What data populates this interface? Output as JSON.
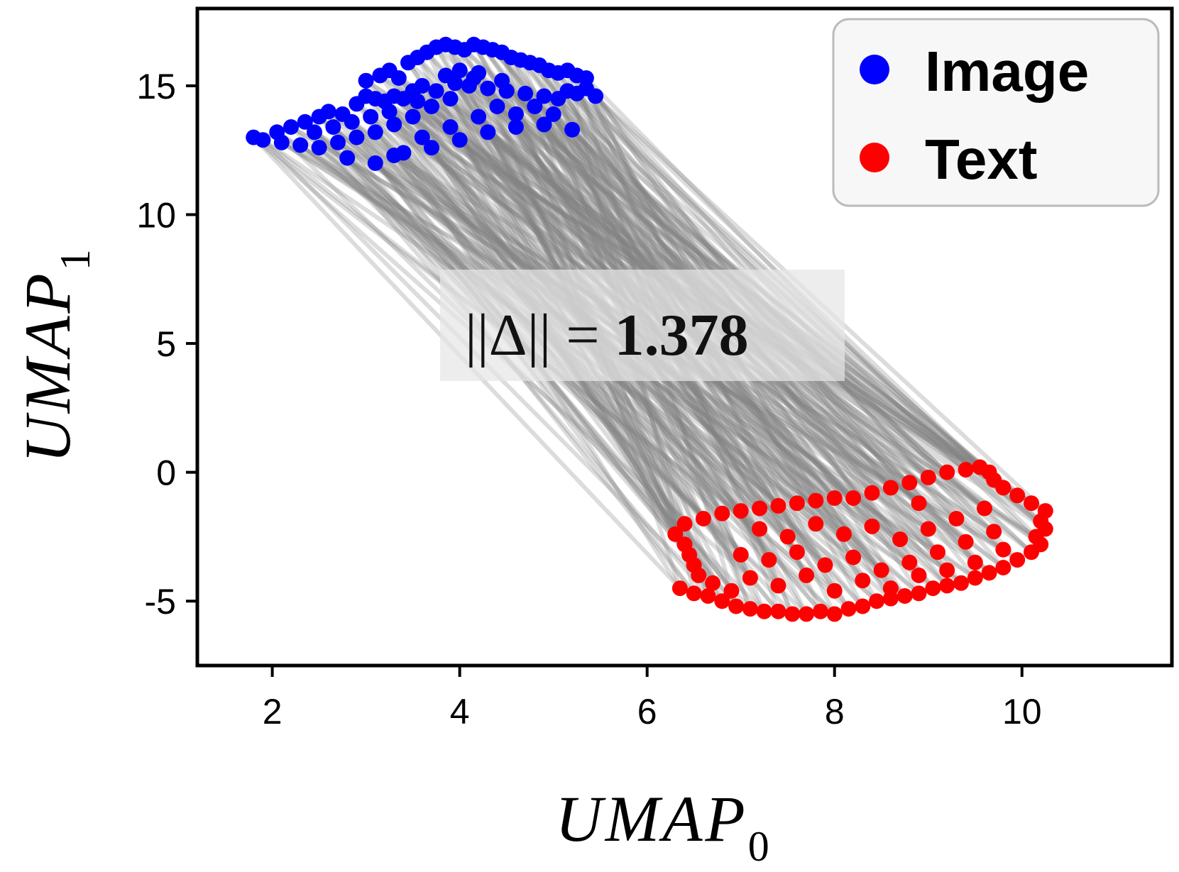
{
  "chart_data": {
    "type": "scatter",
    "title": "",
    "xlabel": "UMAP",
    "xlabel_subscript": "0",
    "ylabel": "UMAP",
    "ylabel_subscript": "1",
    "xlim": [
      1.2,
      11.6
    ],
    "ylim": [
      -7.5,
      18.0
    ],
    "xticks": [
      2,
      4,
      6,
      8,
      10
    ],
    "yticks": [
      15,
      10,
      5,
      0,
      -5
    ],
    "xtick_labels": [
      "2",
      "4",
      "6",
      "8",
      "10"
    ],
    "ytick_labels": [
      "15",
      "10",
      "5",
      "0",
      "-5"
    ],
    "grid": false,
    "legend_position": "top-right",
    "legend": [
      {
        "label": "Image",
        "color": "#0000ff"
      },
      {
        "label": "Text",
        "color": "#ff0000"
      }
    ],
    "connector_color": "#808080",
    "annotation": {
      "prefix": "||Δ|| = ",
      "value": "1.378"
    },
    "series": [
      {
        "name": "Image",
        "color": "#0000ff",
        "points": [
          [
            1.8,
            13.0
          ],
          [
            1.9,
            12.9
          ],
          [
            2.05,
            13.2
          ],
          [
            2.2,
            13.4
          ],
          [
            2.35,
            13.6
          ],
          [
            2.5,
            13.8
          ],
          [
            2.6,
            14.0
          ],
          [
            2.75,
            13.9
          ],
          [
            2.9,
            14.3
          ],
          [
            3.0,
            14.6
          ],
          [
            3.1,
            14.5
          ],
          [
            3.2,
            14.4
          ],
          [
            3.3,
            14.6
          ],
          [
            3.4,
            14.5
          ],
          [
            3.5,
            14.8
          ],
          [
            3.6,
            15.0
          ],
          [
            3.0,
            15.2
          ],
          [
            3.15,
            15.4
          ],
          [
            3.25,
            15.6
          ],
          [
            3.35,
            15.3
          ],
          [
            3.45,
            15.9
          ],
          [
            3.55,
            16.1
          ],
          [
            3.65,
            16.3
          ],
          [
            3.75,
            16.5
          ],
          [
            3.85,
            16.6
          ],
          [
            3.95,
            16.5
          ],
          [
            4.05,
            16.4
          ],
          [
            4.15,
            16.6
          ],
          [
            4.25,
            16.5
          ],
          [
            4.35,
            16.4
          ],
          [
            4.45,
            16.3
          ],
          [
            4.55,
            16.1
          ],
          [
            4.65,
            16.0
          ],
          [
            4.75,
            15.9
          ],
          [
            4.85,
            15.8
          ],
          [
            4.95,
            15.6
          ],
          [
            5.05,
            15.5
          ],
          [
            5.15,
            15.6
          ],
          [
            5.25,
            15.4
          ],
          [
            5.35,
            15.3
          ],
          [
            5.45,
            14.6
          ],
          [
            5.35,
            14.9
          ],
          [
            5.25,
            14.7
          ],
          [
            5.15,
            14.8
          ],
          [
            5.05,
            14.5
          ],
          [
            4.9,
            14.6
          ],
          [
            4.7,
            14.7
          ],
          [
            4.5,
            14.8
          ],
          [
            4.3,
            14.9
          ],
          [
            4.1,
            15.0
          ],
          [
            3.9,
            14.5
          ],
          [
            3.7,
            14.2
          ],
          [
            3.5,
            13.8
          ],
          [
            3.3,
            13.5
          ],
          [
            3.1,
            13.2
          ],
          [
            2.9,
            13.0
          ],
          [
            2.7,
            12.8
          ],
          [
            2.5,
            12.6
          ],
          [
            2.3,
            12.7
          ],
          [
            2.1,
            12.8
          ],
          [
            3.4,
            12.4
          ],
          [
            3.7,
            12.6
          ],
          [
            4.0,
            12.9
          ],
          [
            4.3,
            13.2
          ],
          [
            4.6,
            13.4
          ],
          [
            4.9,
            13.5
          ],
          [
            5.2,
            13.3
          ],
          [
            2.8,
            12.2
          ],
          [
            3.1,
            12.0
          ],
          [
            3.3,
            12.3
          ],
          [
            3.6,
            13.0
          ],
          [
            3.9,
            13.4
          ],
          [
            4.2,
            13.8
          ],
          [
            4.4,
            14.2
          ],
          [
            4.6,
            13.9
          ],
          [
            4.8,
            14.2
          ],
          [
            5.0,
            13.9
          ],
          [
            3.85,
            15.4
          ],
          [
            4.0,
            15.6
          ],
          [
            4.2,
            15.5
          ],
          [
            2.45,
            13.2
          ],
          [
            2.65,
            13.4
          ],
          [
            2.85,
            13.6
          ],
          [
            3.05,
            13.8
          ],
          [
            3.25,
            14.0
          ],
          [
            3.55,
            14.4
          ],
          [
            3.75,
            14.8
          ],
          [
            3.95,
            15.1
          ],
          [
            4.15,
            15.3
          ],
          [
            4.45,
            15.2
          ]
        ]
      },
      {
        "name": "Text",
        "color": "#ff0000",
        "points": [
          [
            6.35,
            -4.5
          ],
          [
            6.5,
            -4.7
          ],
          [
            6.65,
            -4.8
          ],
          [
            6.8,
            -5.0
          ],
          [
            6.95,
            -5.2
          ],
          [
            7.1,
            -5.3
          ],
          [
            7.25,
            -5.4
          ],
          [
            7.4,
            -5.4
          ],
          [
            7.55,
            -5.5
          ],
          [
            7.7,
            -5.5
          ],
          [
            7.85,
            -5.4
          ],
          [
            8.0,
            -5.5
          ],
          [
            8.15,
            -5.3
          ],
          [
            8.3,
            -5.2
          ],
          [
            8.45,
            -5.0
          ],
          [
            8.6,
            -4.9
          ],
          [
            8.75,
            -4.8
          ],
          [
            8.9,
            -4.7
          ],
          [
            9.05,
            -4.5
          ],
          [
            9.2,
            -4.4
          ],
          [
            9.35,
            -4.3
          ],
          [
            9.5,
            -4.1
          ],
          [
            9.65,
            -3.9
          ],
          [
            9.8,
            -3.7
          ],
          [
            9.95,
            -3.4
          ],
          [
            10.1,
            -3.1
          ],
          [
            10.2,
            -2.8
          ],
          [
            10.15,
            -2.5
          ],
          [
            10.25,
            -2.2
          ],
          [
            10.2,
            -1.9
          ],
          [
            10.25,
            -1.5
          ],
          [
            10.1,
            -1.2
          ],
          [
            9.95,
            -0.9
          ],
          [
            9.8,
            -0.6
          ],
          [
            9.7,
            -0.3
          ],
          [
            9.65,
            0.0
          ],
          [
            9.55,
            0.2
          ],
          [
            9.4,
            0.1
          ],
          [
            9.2,
            0.0
          ],
          [
            9.0,
            -0.2
          ],
          [
            8.8,
            -0.4
          ],
          [
            8.6,
            -0.6
          ],
          [
            8.4,
            -0.8
          ],
          [
            8.2,
            -1.0
          ],
          [
            8.0,
            -1.0
          ],
          [
            7.8,
            -1.1
          ],
          [
            7.6,
            -1.2
          ],
          [
            7.4,
            -1.3
          ],
          [
            7.2,
            -1.4
          ],
          [
            7.0,
            -1.5
          ],
          [
            6.8,
            -1.6
          ],
          [
            6.6,
            -1.8
          ],
          [
            6.4,
            -2.0
          ],
          [
            6.3,
            -2.4
          ],
          [
            6.4,
            -2.8
          ],
          [
            6.45,
            -3.2
          ],
          [
            6.5,
            -3.6
          ],
          [
            6.55,
            -4.0
          ],
          [
            6.7,
            -4.3
          ],
          [
            6.9,
            -4.6
          ],
          [
            7.0,
            -3.2
          ],
          [
            7.3,
            -3.4
          ],
          [
            7.6,
            -3.1
          ],
          [
            7.9,
            -3.6
          ],
          [
            8.2,
            -3.3
          ],
          [
            8.5,
            -3.8
          ],
          [
            8.8,
            -3.5
          ],
          [
            9.1,
            -3.1
          ],
          [
            9.4,
            -2.7
          ],
          [
            9.7,
            -2.3
          ],
          [
            7.2,
            -2.2
          ],
          [
            7.5,
            -2.5
          ],
          [
            7.8,
            -2.0
          ],
          [
            8.1,
            -2.4
          ],
          [
            8.4,
            -2.1
          ],
          [
            8.7,
            -2.6
          ],
          [
            9.0,
            -2.2
          ],
          [
            9.3,
            -1.8
          ],
          [
            9.6,
            -1.4
          ],
          [
            8.9,
            -1.2
          ],
          [
            7.1,
            -4.1
          ],
          [
            7.4,
            -4.4
          ],
          [
            7.7,
            -4.0
          ],
          [
            8.0,
            -4.6
          ],
          [
            8.3,
            -4.2
          ],
          [
            8.6,
            -4.5
          ],
          [
            8.9,
            -4.0
          ],
          [
            9.2,
            -3.8
          ],
          [
            9.5,
            -3.5
          ],
          [
            9.8,
            -3.0
          ]
        ]
      }
    ]
  }
}
